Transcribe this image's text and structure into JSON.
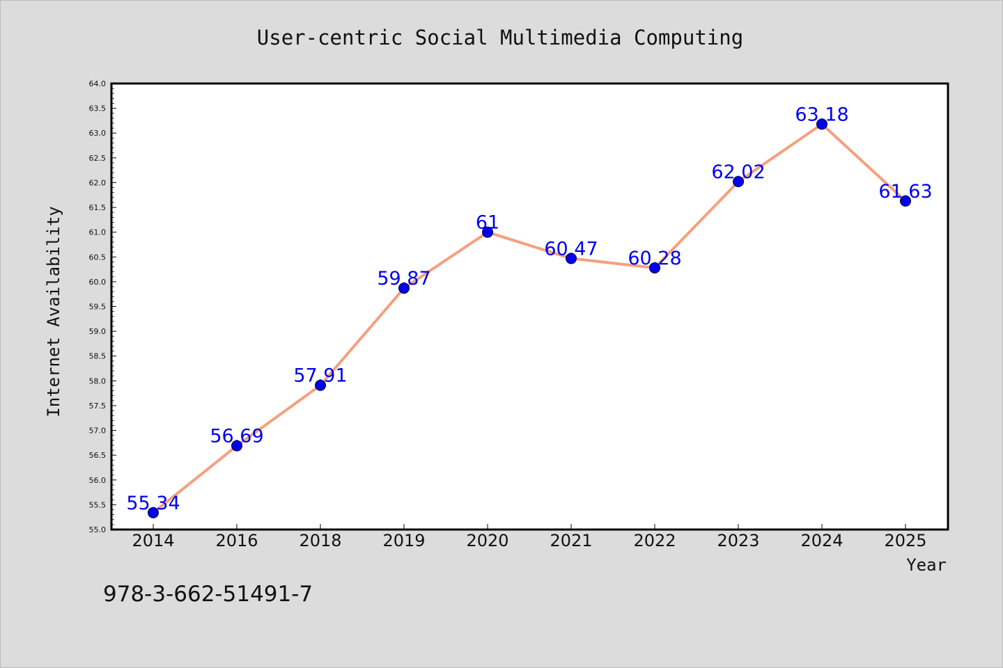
{
  "chart_data": {
    "type": "line",
    "title": "User-centric Social Multimedia Computing",
    "xlabel": "Year",
    "ylabel": "Internet Availability",
    "categories": [
      "2014",
      "2016",
      "2018",
      "2019",
      "2020",
      "2021",
      "2022",
      "2023",
      "2024",
      "2025"
    ],
    "series": [
      {
        "values": [
          55.34,
          56.69,
          57.91,
          59.87,
          61,
          60.47,
          60.28,
          62.02,
          63.18,
          61.63
        ],
        "labels": [
          "55.34",
          "56.69",
          "57.91",
          "59.87",
          "61",
          "60.47",
          "60.28",
          "62.02",
          "63.18",
          "61.63"
        ]
      }
    ],
    "ylim": [
      55.0,
      64.0
    ],
    "yticks": [
      "55.0",
      "55.5",
      "56.0",
      "56.5",
      "57.0",
      "57.5",
      "58.0",
      "58.5",
      "59.0",
      "59.5",
      "60.0",
      "60.5",
      "61.0",
      "61.5",
      "62.0",
      "62.5",
      "63.0",
      "63.5",
      "64.0"
    ],
    "grid": false,
    "colors": {
      "line": "#f4a07f",
      "marker": "#0000ee",
      "data_label": "#0000ee",
      "background": "#dcdcdc",
      "plot_background": "#ffffff"
    }
  },
  "footer_text": "978-3-662-51491-7"
}
